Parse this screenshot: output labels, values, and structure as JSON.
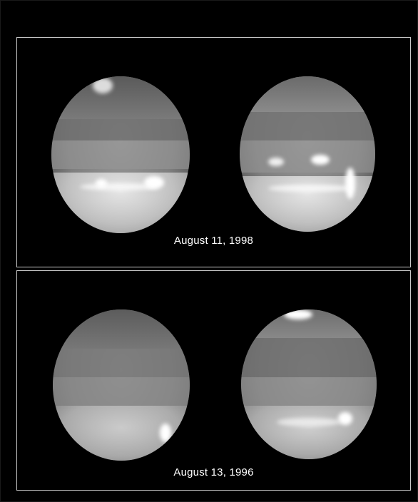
{
  "panels": [
    {
      "caption": "August 11, 1998"
    },
    {
      "caption": "August 13, 1996"
    }
  ],
  "colors": {
    "background": "#000000",
    "frame": "#c8c8c8",
    "caption": "#ffffff"
  }
}
